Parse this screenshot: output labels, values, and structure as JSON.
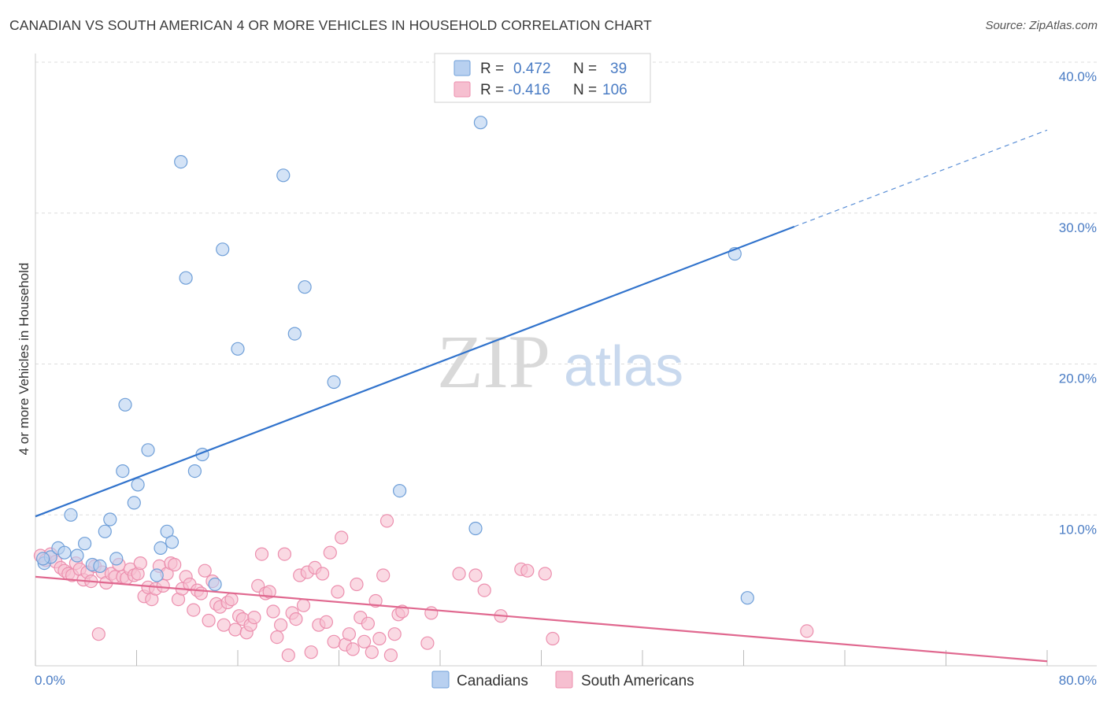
{
  "title": "CANADIAN VS SOUTH AMERICAN 4 OR MORE VEHICLES IN HOUSEHOLD CORRELATION CHART",
  "source": "Source: ZipAtlas.com",
  "watermark": {
    "zip": "ZIP",
    "atlas": "atlas"
  },
  "colors": {
    "blue_fill": "#b8d0f0",
    "blue_stroke": "#6f9fd8",
    "blue_line": "#3173cc",
    "pink_fill": "#f6bfd0",
    "pink_stroke": "#ec8fae",
    "pink_line": "#e0688f",
    "grid": "#dddddd",
    "tick_text": "#4a7cc4"
  },
  "legend": {
    "rows": [
      {
        "r_label": "R =",
        "r_value": "0.472",
        "n_label": "N =",
        "n_value": "39"
      },
      {
        "r_label": "R =",
        "r_value": "-0.416",
        "n_label": "N =",
        "n_value": "106"
      }
    ]
  },
  "chart_data": {
    "type": "scatter",
    "title": "CANADIAN VS SOUTH AMERICAN 4 OR MORE VEHICLES IN HOUSEHOLD CORRELATION CHART",
    "xlabel": "",
    "ylabel": "4 or more Vehicles in Household",
    "xlim": [
      0,
      80
    ],
    "ylim": [
      0,
      42
    ],
    "x_tick_labels": [
      "0.0%",
      "80.0%"
    ],
    "y_ticks": [
      10,
      20,
      30,
      40
    ],
    "y_tick_labels": [
      "10.0%",
      "20.0%",
      "30.0%",
      "40.0%"
    ],
    "grid": true,
    "legend_position": "bottom",
    "series": [
      {
        "name": "Canadians",
        "color": "#b8d0f0",
        "points": [
          [
            0.7,
            6.8
          ],
          [
            1.2,
            7.2
          ],
          [
            1.8,
            7.8
          ],
          [
            2.3,
            7.5
          ],
          [
            2.8,
            10.0
          ],
          [
            3.3,
            7.3
          ],
          [
            3.9,
            8.1
          ],
          [
            4.5,
            6.7
          ],
          [
            5.1,
            6.6
          ],
          [
            5.5,
            8.9
          ],
          [
            5.9,
            9.7
          ],
          [
            6.4,
            7.1
          ],
          [
            6.9,
            12.9
          ],
          [
            7.1,
            17.3
          ],
          [
            7.8,
            10.8
          ],
          [
            8.1,
            12.0
          ],
          [
            8.9,
            14.3
          ],
          [
            9.6,
            6.0
          ],
          [
            9.9,
            7.8
          ],
          [
            10.4,
            8.9
          ],
          [
            10.8,
            8.2
          ],
          [
            11.5,
            33.4
          ],
          [
            11.9,
            25.7
          ],
          [
            12.6,
            12.9
          ],
          [
            13.2,
            14.0
          ],
          [
            14.2,
            5.4
          ],
          [
            14.8,
            27.6
          ],
          [
            16.0,
            21.0
          ],
          [
            19.6,
            32.5
          ],
          [
            20.5,
            22.0
          ],
          [
            21.3,
            25.1
          ],
          [
            23.6,
            18.8
          ],
          [
            28.8,
            11.6
          ],
          [
            34.8,
            9.1
          ],
          [
            35.2,
            36.0
          ],
          [
            41.7,
            38.5
          ],
          [
            55.3,
            27.3
          ],
          [
            56.3,
            4.5
          ],
          [
            0.6,
            7.1
          ]
        ]
      },
      {
        "name": "South Americans",
        "color": "#f6bfd0",
        "points": [
          [
            0.4,
            7.3
          ],
          [
            0.8,
            7.0
          ],
          [
            1.2,
            7.4
          ],
          [
            1.6,
            6.9
          ],
          [
            2.0,
            6.5
          ],
          [
            2.3,
            6.3
          ],
          [
            2.6,
            6.1
          ],
          [
            2.9,
            6.0
          ],
          [
            3.2,
            6.8
          ],
          [
            3.5,
            6.4
          ],
          [
            3.8,
            5.7
          ],
          [
            4.1,
            6.2
          ],
          [
            4.4,
            5.6
          ],
          [
            4.7,
            6.6
          ],
          [
            5.0,
            2.1
          ],
          [
            5.3,
            6.2
          ],
          [
            5.6,
            5.5
          ],
          [
            6.0,
            6.1
          ],
          [
            6.3,
            5.9
          ],
          [
            6.6,
            6.7
          ],
          [
            6.9,
            5.9
          ],
          [
            7.2,
            5.8
          ],
          [
            7.5,
            6.4
          ],
          [
            7.8,
            6.0
          ],
          [
            8.1,
            6.1
          ],
          [
            8.3,
            6.8
          ],
          [
            8.6,
            4.6
          ],
          [
            8.9,
            5.2
          ],
          [
            9.2,
            4.4
          ],
          [
            9.5,
            5.1
          ],
          [
            9.8,
            6.6
          ],
          [
            10.1,
            5.3
          ],
          [
            10.4,
            6.1
          ],
          [
            10.7,
            6.8
          ],
          [
            11.0,
            6.7
          ],
          [
            11.3,
            4.4
          ],
          [
            11.6,
            5.1
          ],
          [
            11.9,
            5.9
          ],
          [
            12.2,
            5.4
          ],
          [
            12.5,
            3.7
          ],
          [
            12.8,
            5.0
          ],
          [
            13.1,
            4.8
          ],
          [
            13.4,
            6.3
          ],
          [
            13.7,
            3.0
          ],
          [
            14.0,
            5.6
          ],
          [
            14.3,
            4.1
          ],
          [
            14.6,
            3.9
          ],
          [
            14.9,
            2.7
          ],
          [
            15.2,
            4.2
          ],
          [
            15.5,
            4.4
          ],
          [
            15.8,
            2.4
          ],
          [
            16.1,
            3.3
          ],
          [
            16.4,
            3.1
          ],
          [
            16.7,
            2.2
          ],
          [
            17.0,
            2.7
          ],
          [
            17.3,
            3.2
          ],
          [
            17.6,
            5.3
          ],
          [
            17.9,
            7.4
          ],
          [
            18.2,
            4.8
          ],
          [
            18.5,
            4.9
          ],
          [
            18.8,
            3.6
          ],
          [
            19.1,
            1.9
          ],
          [
            19.4,
            2.7
          ],
          [
            19.7,
            7.4
          ],
          [
            20.0,
            0.7
          ],
          [
            20.3,
            3.5
          ],
          [
            20.6,
            3.1
          ],
          [
            20.9,
            6.0
          ],
          [
            21.2,
            4.0
          ],
          [
            21.5,
            6.2
          ],
          [
            21.8,
            0.9
          ],
          [
            22.1,
            6.5
          ],
          [
            22.4,
            2.7
          ],
          [
            22.7,
            6.1
          ],
          [
            23.0,
            2.9
          ],
          [
            23.3,
            7.5
          ],
          [
            23.6,
            1.6
          ],
          [
            23.9,
            4.9
          ],
          [
            24.2,
            8.5
          ],
          [
            24.5,
            1.4
          ],
          [
            24.8,
            2.1
          ],
          [
            25.1,
            1.1
          ],
          [
            25.4,
            5.4
          ],
          [
            25.7,
            3.2
          ],
          [
            26.0,
            1.6
          ],
          [
            26.3,
            2.8
          ],
          [
            26.6,
            0.9
          ],
          [
            26.9,
            4.3
          ],
          [
            27.2,
            1.8
          ],
          [
            27.5,
            6.0
          ],
          [
            27.8,
            9.6
          ],
          [
            28.1,
            0.7
          ],
          [
            28.4,
            2.1
          ],
          [
            28.7,
            3.4
          ],
          [
            29.0,
            3.6
          ],
          [
            31.0,
            1.5
          ],
          [
            31.3,
            3.5
          ],
          [
            33.5,
            6.1
          ],
          [
            34.8,
            6.0
          ],
          [
            35.5,
            5.0
          ],
          [
            36.8,
            3.3
          ],
          [
            38.4,
            6.4
          ],
          [
            38.9,
            6.3
          ],
          [
            40.3,
            6.1
          ],
          [
            40.9,
            1.8
          ],
          [
            61.0,
            2.3
          ]
        ]
      }
    ],
    "trend_lines": [
      {
        "series": "Canadians",
        "x": [
          0,
          60
        ],
        "y": [
          9.9,
          29.1
        ],
        "dashed_extension_to": [
          80,
          35.5
        ]
      },
      {
        "series": "South Americans",
        "x": [
          0,
          80
        ],
        "y": [
          5.9,
          0.3
        ]
      }
    ]
  },
  "bottom_legend": {
    "items": [
      "Canadians",
      "South Americans"
    ]
  }
}
